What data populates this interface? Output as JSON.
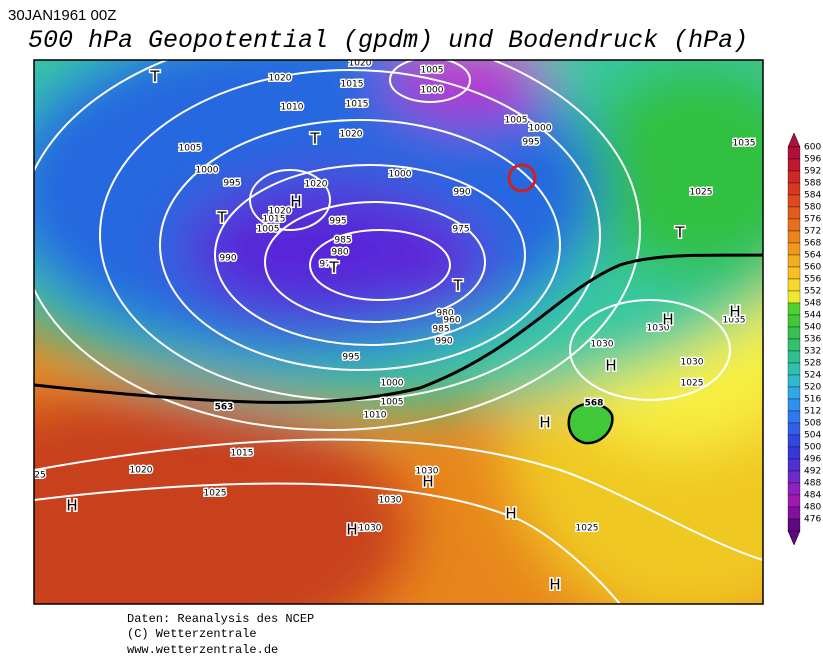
{
  "header": {
    "date": "30JAN1961 00Z",
    "title": "500 hPa Geopotential (gpdm) und Bodendruck (hPa)"
  },
  "colorbar": {
    "levels": [
      600,
      596,
      592,
      588,
      584,
      580,
      576,
      572,
      568,
      564,
      560,
      556,
      552,
      548,
      544,
      540,
      536,
      532,
      528,
      524,
      520,
      516,
      512,
      508,
      504,
      500,
      496,
      492,
      488,
      484,
      480,
      476
    ],
    "colors": [
      "#b0103c",
      "#c01830",
      "#d02828",
      "#d83820",
      "#e04820",
      "#e45c1c",
      "#e8701c",
      "#ec841c",
      "#f0981c",
      "#f4ac20",
      "#f8c024",
      "#f8d828",
      "#f0e830",
      "#50d030",
      "#40c838",
      "#38c050",
      "#30c070",
      "#30c090",
      "#30c0b0",
      "#30b8d0",
      "#30a8e8",
      "#3090f0",
      "#3078f0",
      "#3060e8",
      "#3048e0",
      "#3838d8",
      "#5030d0",
      "#7028c8",
      "#9020c0",
      "#a018b0",
      "#8010a0",
      "#600880"
    ]
  },
  "map": {
    "isobar_labels": [
      "1020",
      "1015",
      "1020",
      "1005",
      "1000",
      "1010",
      "1015",
      "1020",
      "1005",
      "1000",
      "995",
      "1020",
      "1020",
      "1015",
      "1005",
      "995",
      "985",
      "980",
      "975",
      "990",
      "1000",
      "990",
      "975",
      "1005",
      "1000",
      "995",
      "980",
      "960",
      "985",
      "990",
      "995",
      "1000",
      "1005",
      "1010",
      "1015",
      "1020",
      "1025",
      "25",
      "1030",
      "1030",
      "1030",
      "1025",
      "1030",
      "1030",
      "1025",
      "1030",
      "1035",
      "1025",
      "1035"
    ],
    "contour_labels": [
      "563",
      "568"
    ],
    "centers": [
      "T",
      "T",
      "H",
      "T",
      "T",
      "T",
      "H",
      "H",
      "H",
      "H",
      "H",
      "H",
      "H",
      "H",
      "H",
      "T"
    ]
  },
  "footer": {
    "lines": [
      "Daten: Reanalysis des NCEP",
      "(C) Wetterzentrale",
      "www.wetterzentrale.de"
    ]
  }
}
